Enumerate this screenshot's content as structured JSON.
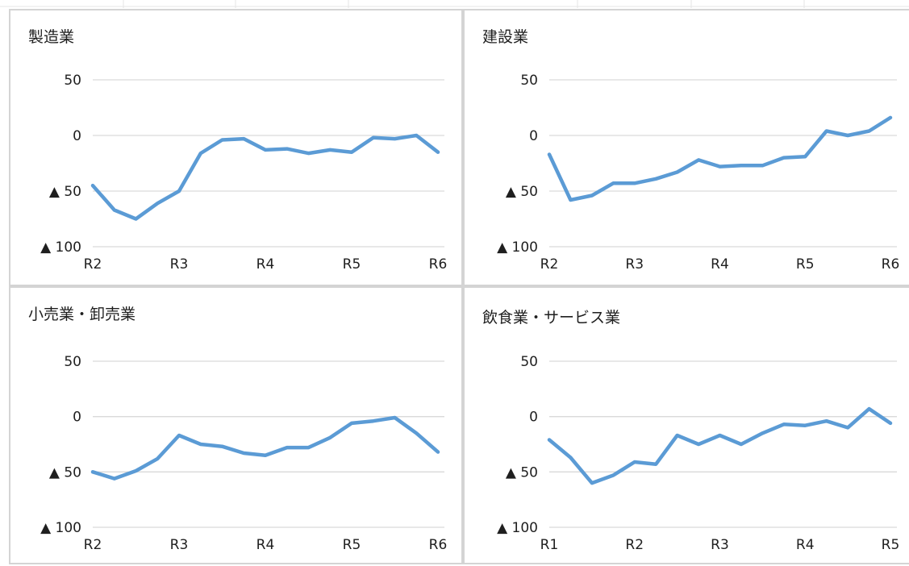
{
  "colors": {
    "line": "#5b9bd5",
    "grid": "#d9d9d9",
    "text": "#1f1f1f",
    "border": "#d4d4d4"
  },
  "chart_data": [
    {
      "type": "line",
      "title": "製造業",
      "ylim": [
        -100,
        50
      ],
      "yticks": [
        {
          "value": 50,
          "label": "50"
        },
        {
          "value": 0,
          "label": "0"
        },
        {
          "value": -50,
          "label": "▲ 50"
        },
        {
          "value": -100,
          "label": "▲ 100"
        }
      ],
      "xticks": [
        {
          "index": 0,
          "label": "R2"
        },
        {
          "index": 4,
          "label": "R3"
        },
        {
          "index": 8,
          "label": "R4"
        },
        {
          "index": 12,
          "label": "R5"
        },
        {
          "index": 16,
          "label": "R6"
        }
      ],
      "grid": true,
      "values": [
        -45,
        -67,
        -75,
        -61,
        -50,
        -16,
        -4,
        -3,
        -13,
        -12,
        -16,
        -13,
        -15,
        -2,
        -3,
        0,
        -15
      ]
    },
    {
      "type": "line",
      "title": "建設業",
      "ylim": [
        -100,
        50
      ],
      "yticks": [
        {
          "value": 50,
          "label": "50"
        },
        {
          "value": 0,
          "label": "0"
        },
        {
          "value": -50,
          "label": "▲ 50"
        },
        {
          "value": -100,
          "label": "▲ 100"
        }
      ],
      "xticks": [
        {
          "index": 0,
          "label": "R2"
        },
        {
          "index": 4,
          "label": "R3"
        },
        {
          "index": 8,
          "label": "R4"
        },
        {
          "index": 12,
          "label": "R5"
        },
        {
          "index": 16,
          "label": "R6"
        }
      ],
      "grid": true,
      "values": [
        -17,
        -58,
        -54,
        -43,
        -43,
        -39,
        -33,
        -22,
        -28,
        -27,
        -27,
        -20,
        -19,
        4,
        0,
        4,
        16
      ]
    },
    {
      "type": "line",
      "title": "小売業・卸売業",
      "ylim": [
        -100,
        50
      ],
      "yticks": [
        {
          "value": 50,
          "label": "50"
        },
        {
          "value": 0,
          "label": "0"
        },
        {
          "value": -50,
          "label": "▲ 50"
        },
        {
          "value": -100,
          "label": "▲ 100"
        }
      ],
      "xticks": [
        {
          "index": 0,
          "label": "R2"
        },
        {
          "index": 4,
          "label": "R3"
        },
        {
          "index": 8,
          "label": "R4"
        },
        {
          "index": 12,
          "label": "R5"
        },
        {
          "index": 16,
          "label": "R6"
        }
      ],
      "grid": true,
      "values": [
        -50,
        -56,
        -49,
        -38,
        -17,
        -25,
        -27,
        -33,
        -35,
        -28,
        -28,
        -19,
        -6,
        -4,
        -1,
        -15,
        -32
      ]
    },
    {
      "type": "line",
      "title": "飲食業・サービス業",
      "ylim": [
        -100,
        50
      ],
      "yticks": [
        {
          "value": 50,
          "label": "50"
        },
        {
          "value": 0,
          "label": "0"
        },
        {
          "value": -50,
          "label": "▲ 50"
        },
        {
          "value": -100,
          "label": "▲ 100"
        }
      ],
      "xticks": [
        {
          "index": 0,
          "label": "R1"
        },
        {
          "index": 4,
          "label": "R2"
        },
        {
          "index": 8,
          "label": "R3"
        },
        {
          "index": 12,
          "label": "R4"
        },
        {
          "index": 16,
          "label": "R5"
        }
      ],
      "grid": true,
      "values": [
        -21,
        -37,
        -60,
        -53,
        -41,
        -43,
        -17,
        -25,
        -17,
        -25,
        -15,
        -7,
        -8,
        -4,
        -10,
        7,
        -6
      ]
    }
  ]
}
